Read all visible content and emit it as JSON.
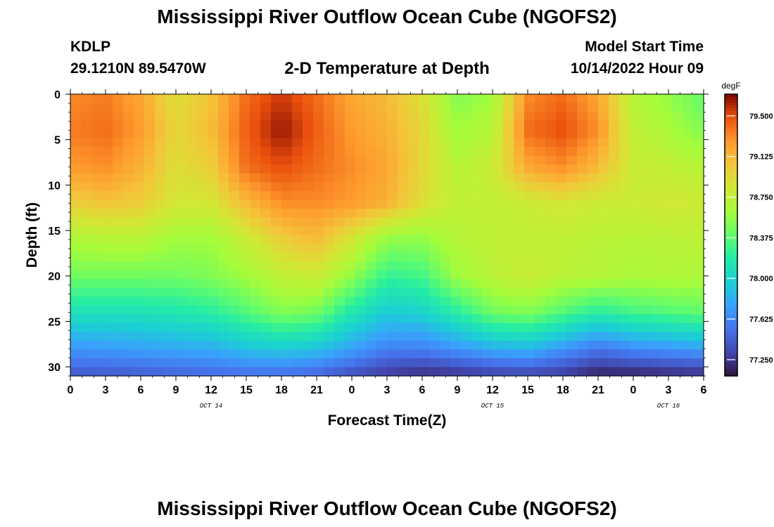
{
  "header": {
    "title": "Mississippi River Outflow Ocean Cube (NGOFS2)",
    "station": "KDLP",
    "coordinates": "29.1210N  89.5470W",
    "subtitle": "2-D Temperature at Depth",
    "model_start_label": "Model Start Time",
    "model_start_value": "10/14/2022 Hour 09"
  },
  "footer": {
    "title": "Mississippi River Outflow Ocean Cube (NGOFS2)"
  },
  "chart_data": {
    "type": "heatmap",
    "title": "2-D Temperature at Depth",
    "xlabel": "Forecast Time(Z)",
    "ylabel": "Depth (ft)",
    "x_ticks": [
      "0",
      "3",
      "6",
      "9",
      "12",
      "15",
      "18",
      "21",
      "0",
      "3",
      "6",
      "9",
      "12",
      "15",
      "18",
      "21",
      "0",
      "3",
      "6"
    ],
    "x_range_hours": [
      0,
      54
    ],
    "date_labels": [
      {
        "label": "OCT 14",
        "hour": 12
      },
      {
        "label": "OCT 15",
        "hour": 36
      },
      {
        "label": "OCT 16",
        "hour": 51
      }
    ],
    "y_ticks": [
      0,
      5,
      10,
      15,
      20,
      25,
      30
    ],
    "ylim": [
      0,
      31
    ],
    "y_inverted": true,
    "colorbar": {
      "unit": "degF",
      "ticks": [
        "79.500",
        "79.125",
        "78.750",
        "78.375",
        "78.000",
        "77.625",
        "77.250"
      ],
      "range": [
        77.1,
        79.7
      ],
      "colormap": "turbo"
    },
    "x_hours": [
      0,
      3,
      6,
      9,
      12,
      15,
      18,
      21,
      24,
      27,
      30,
      33,
      36,
      39,
      42,
      45,
      48,
      51,
      54
    ],
    "depths": [
      0,
      4,
      8,
      12,
      16,
      20,
      24,
      28,
      31
    ],
    "values": [
      [
        79.3,
        79.35,
        79.2,
        78.9,
        79.05,
        79.4,
        79.55,
        79.4,
        79.2,
        79.1,
        78.9,
        78.5,
        78.6,
        79.3,
        79.4,
        79.2,
        78.7,
        78.55,
        78.4
      ],
      [
        79.35,
        79.4,
        79.25,
        78.95,
        79.1,
        79.45,
        79.65,
        79.45,
        79.25,
        79.15,
        78.95,
        78.6,
        78.7,
        79.4,
        79.5,
        79.3,
        78.75,
        78.65,
        78.5
      ],
      [
        79.25,
        79.3,
        79.15,
        78.9,
        79.0,
        79.4,
        79.5,
        79.4,
        79.3,
        79.2,
        78.95,
        78.7,
        78.8,
        79.2,
        79.3,
        79.1,
        78.8,
        78.75,
        78.7
      ],
      [
        79.0,
        79.05,
        79.0,
        78.85,
        78.85,
        79.1,
        79.3,
        79.3,
        79.25,
        79.15,
        78.9,
        78.75,
        78.75,
        78.8,
        78.85,
        78.8,
        78.8,
        78.85,
        78.8
      ],
      [
        78.65,
        78.7,
        78.7,
        78.6,
        78.6,
        78.8,
        79.0,
        79.1,
        78.85,
        78.55,
        78.55,
        78.7,
        78.75,
        78.75,
        78.75,
        78.72,
        78.7,
        78.72,
        78.72
      ],
      [
        78.45,
        78.45,
        78.45,
        78.45,
        78.5,
        78.6,
        78.75,
        78.8,
        78.55,
        78.25,
        78.3,
        78.6,
        78.72,
        78.8,
        78.72,
        78.7,
        78.65,
        78.68,
        78.65
      ],
      [
        78.1,
        78.1,
        78.1,
        78.15,
        78.2,
        78.35,
        78.5,
        78.45,
        78.15,
        77.95,
        78.0,
        78.2,
        78.45,
        78.5,
        78.35,
        78.2,
        78.3,
        78.35,
        78.4
      ],
      [
        77.7,
        77.72,
        77.75,
        77.78,
        77.8,
        77.9,
        77.95,
        77.9,
        77.75,
        77.6,
        77.6,
        77.7,
        77.8,
        77.85,
        77.7,
        77.55,
        77.65,
        77.7,
        77.75
      ],
      [
        77.4,
        77.4,
        77.42,
        77.45,
        77.48,
        77.5,
        77.5,
        77.45,
        77.35,
        77.25,
        77.2,
        77.22,
        77.28,
        77.3,
        77.25,
        77.15,
        77.15,
        77.18,
        77.2
      ]
    ]
  }
}
